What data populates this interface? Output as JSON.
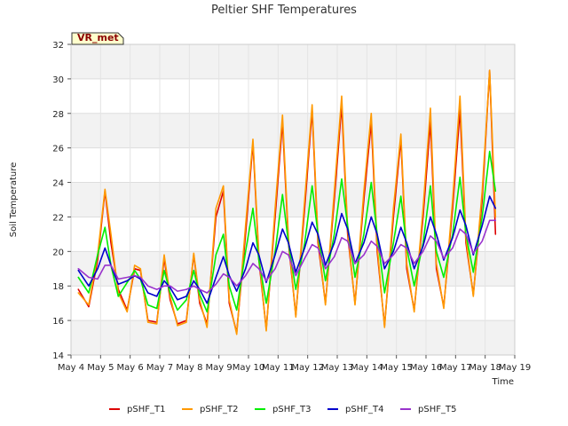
{
  "chart_data": {
    "type": "line",
    "title": "Peltier SHF Temperatures",
    "xlabel": "Time",
    "ylabel": "Soil Temperature",
    "badge": "VR_met",
    "xlim": [
      4,
      19
    ],
    "ylim": [
      14,
      32
    ],
    "x_ticks": [
      4,
      5,
      6,
      7,
      8,
      9,
      10,
      11,
      12,
      13,
      14,
      15,
      16,
      17,
      18,
      19
    ],
    "x_tick_labels": [
      "May 4",
      "May 5",
      "May 6",
      "May 7",
      "May 8",
      "May 9",
      "May 10",
      "May 11",
      "May 12",
      "May 13",
      "May 14",
      "May 15",
      "May 16",
      "May 17",
      "May 18",
      "May 19"
    ],
    "y_ticks": [
      14,
      16,
      18,
      20,
      22,
      24,
      26,
      28,
      30,
      32
    ],
    "y_tick_labels": [
      "14",
      "16",
      "18",
      "20",
      "22",
      "24",
      "26",
      "28",
      "30",
      "32"
    ],
    "grid": true,
    "legend_position": "bottom",
    "series": [
      {
        "name": "pSHF_T1",
        "color": "#dd0000",
        "x": [
          4.25,
          4.6,
          4.9,
          5.15,
          5.35,
          5.6,
          5.9,
          6.15,
          6.35,
          6.6,
          6.9,
          7.15,
          7.35,
          7.6,
          7.9,
          8.15,
          8.35,
          8.6,
          8.9,
          9.15,
          9.35,
          9.6,
          9.9,
          10.15,
          10.35,
          10.6,
          10.9,
          11.15,
          11.35,
          11.6,
          11.9,
          12.15,
          12.35,
          12.6,
          12.9,
          13.15,
          13.35,
          13.6,
          13.9,
          14.15,
          14.35,
          14.6,
          14.9,
          15.15,
          15.35,
          15.6,
          15.9,
          16.15,
          16.35,
          16.6,
          16.9,
          17.15,
          17.35,
          17.6,
          17.9,
          18.15,
          18.35
        ],
        "y": [
          17.8,
          16.8,
          19.5,
          23.5,
          20.5,
          17.8,
          16.6,
          19.0,
          18.9,
          16.0,
          15.9,
          19.6,
          17.2,
          15.8,
          16.0,
          19.8,
          17.0,
          15.8,
          22.0,
          23.5,
          17.0,
          15.3,
          21.0,
          26.3,
          19.5,
          15.5,
          22.0,
          27.5,
          20.5,
          16.3,
          22.5,
          28.2,
          20.5,
          17.0,
          23.0,
          28.5,
          21.0,
          17.0,
          23.0,
          27.5,
          20.0,
          15.7,
          22.0,
          26.5,
          19.0,
          16.6,
          22.0,
          27.5,
          19.0,
          16.8,
          22.5,
          28.2,
          20.5,
          17.5,
          23.0,
          30.5,
          21.0
        ]
      },
      {
        "name": "pSHF_T2",
        "color": "#ff9900",
        "x": [
          4.25,
          4.6,
          4.9,
          5.15,
          5.35,
          5.6,
          5.9,
          6.15,
          6.35,
          6.6,
          6.9,
          7.15,
          7.35,
          7.6,
          7.9,
          8.15,
          8.35,
          8.6,
          8.9,
          9.15,
          9.35,
          9.6,
          9.9,
          10.15,
          10.35,
          10.6,
          10.9,
          11.15,
          11.35,
          11.6,
          11.9,
          12.15,
          12.35,
          12.6,
          12.9,
          13.15,
          13.35,
          13.6,
          13.9,
          14.15,
          14.35,
          14.6,
          14.9,
          15.15,
          15.35,
          15.6,
          15.9,
          16.15,
          16.35,
          16.6,
          16.9,
          17.15,
          17.35,
          17.6,
          17.9,
          18.15,
          18.35
        ],
        "y": [
          17.6,
          16.9,
          19.8,
          23.6,
          21.0,
          17.6,
          16.5,
          19.2,
          19.0,
          15.9,
          15.8,
          19.8,
          17.4,
          15.7,
          15.9,
          19.9,
          17.2,
          15.6,
          22.5,
          23.8,
          17.2,
          15.2,
          21.5,
          26.5,
          19.8,
          15.4,
          22.5,
          27.9,
          20.8,
          16.2,
          23.0,
          28.5,
          20.8,
          16.9,
          23.5,
          29.0,
          21.3,
          16.9,
          23.5,
          28.0,
          20.3,
          15.6,
          22.5,
          26.8,
          19.3,
          16.5,
          22.5,
          28.3,
          19.3,
          16.7,
          23.0,
          29.0,
          20.8,
          17.4,
          23.5,
          30.5,
          22.0
        ]
      },
      {
        "name": "pSHF_T3",
        "color": "#00ee00",
        "x": [
          4.25,
          4.6,
          4.9,
          5.15,
          5.35,
          5.6,
          5.9,
          6.15,
          6.35,
          6.6,
          6.9,
          7.15,
          7.35,
          7.6,
          7.9,
          8.15,
          8.35,
          8.6,
          8.9,
          9.15,
          9.35,
          9.6,
          9.9,
          10.15,
          10.35,
          10.6,
          10.9,
          11.15,
          11.35,
          11.6,
          11.9,
          12.15,
          12.35,
          12.6,
          12.9,
          13.15,
          13.35,
          13.6,
          13.9,
          14.15,
          14.35,
          14.6,
          14.9,
          15.15,
          15.35,
          15.6,
          15.9,
          16.15,
          16.35,
          16.6,
          16.9,
          17.15,
          17.35,
          17.6,
          17.9,
          18.15,
          18.35
        ],
        "y": [
          18.5,
          17.6,
          19.8,
          21.4,
          19.2,
          17.4,
          18.2,
          18.9,
          18.4,
          16.9,
          16.7,
          18.9,
          17.6,
          16.6,
          17.2,
          18.9,
          17.5,
          16.5,
          19.8,
          21.0,
          18.0,
          16.6,
          20.0,
          22.5,
          19.5,
          17.0,
          20.0,
          23.3,
          20.5,
          17.8,
          20.5,
          23.8,
          21.0,
          18.3,
          21.0,
          24.2,
          21.5,
          18.5,
          21.0,
          24.0,
          21.0,
          17.6,
          20.5,
          23.2,
          20.2,
          18.0,
          20.5,
          23.8,
          20.0,
          18.5,
          21.0,
          24.3,
          21.0,
          18.8,
          22.0,
          25.8,
          23.5
        ]
      },
      {
        "name": "pSHF_T4",
        "color": "#0000cc",
        "x": [
          4.25,
          4.6,
          4.9,
          5.15,
          5.35,
          5.6,
          5.9,
          6.15,
          6.35,
          6.6,
          6.9,
          7.15,
          7.35,
          7.6,
          7.9,
          8.15,
          8.35,
          8.6,
          8.9,
          9.15,
          9.35,
          9.6,
          9.9,
          10.15,
          10.35,
          10.6,
          10.9,
          11.15,
          11.35,
          11.6,
          11.9,
          12.15,
          12.35,
          12.6,
          12.9,
          13.15,
          13.35,
          13.6,
          13.9,
          14.15,
          14.35,
          14.6,
          14.9,
          15.15,
          15.35,
          15.6,
          15.9,
          16.15,
          16.35,
          16.6,
          16.9,
          17.15,
          17.35,
          17.6,
          17.9,
          18.15,
          18.35
        ],
        "y": [
          18.9,
          18.0,
          19.0,
          20.2,
          19.2,
          18.1,
          18.3,
          18.6,
          18.4,
          17.6,
          17.4,
          18.3,
          17.9,
          17.2,
          17.4,
          18.3,
          17.8,
          17.0,
          18.5,
          19.7,
          18.6,
          17.7,
          19.0,
          20.5,
          19.8,
          18.2,
          19.8,
          21.3,
          20.5,
          18.8,
          20.2,
          21.7,
          21.0,
          19.2,
          20.5,
          22.2,
          21.3,
          19.3,
          20.5,
          22.0,
          21.0,
          19.0,
          20.0,
          21.4,
          20.5,
          19.0,
          20.3,
          22.0,
          21.0,
          19.5,
          20.8,
          22.4,
          21.5,
          19.8,
          21.5,
          23.2,
          22.5
        ]
      },
      {
        "name": "pSHF_T5",
        "color": "#9933cc",
        "x": [
          4.25,
          4.6,
          4.9,
          5.15,
          5.35,
          5.6,
          5.9,
          6.15,
          6.35,
          6.6,
          6.9,
          7.15,
          7.35,
          7.6,
          7.9,
          8.15,
          8.35,
          8.6,
          8.9,
          9.15,
          9.35,
          9.6,
          9.9,
          10.15,
          10.35,
          10.6,
          10.9,
          11.15,
          11.35,
          11.6,
          11.9,
          12.15,
          12.35,
          12.6,
          12.9,
          13.15,
          13.35,
          13.6,
          13.9,
          14.15,
          14.35,
          14.6,
          14.9,
          15.15,
          15.35,
          15.6,
          15.9,
          16.15,
          16.35,
          16.6,
          16.9,
          17.15,
          17.35,
          17.6,
          17.9,
          18.15,
          18.35
        ],
        "y": [
          19.0,
          18.5,
          18.4,
          19.2,
          19.2,
          18.4,
          18.5,
          18.6,
          18.5,
          18.0,
          17.8,
          18.0,
          18.0,
          17.7,
          17.8,
          18.0,
          17.8,
          17.6,
          18.1,
          18.7,
          18.5,
          18.0,
          18.6,
          19.3,
          19.0,
          18.3,
          19.0,
          20.0,
          19.8,
          18.6,
          19.6,
          20.4,
          20.2,
          19.0,
          19.7,
          20.8,
          20.6,
          19.3,
          19.8,
          20.6,
          20.3,
          19.3,
          19.8,
          20.4,
          20.2,
          19.3,
          20.0,
          20.9,
          20.6,
          19.6,
          20.2,
          21.3,
          21.0,
          19.9,
          20.6,
          21.8,
          21.8
        ]
      }
    ]
  }
}
